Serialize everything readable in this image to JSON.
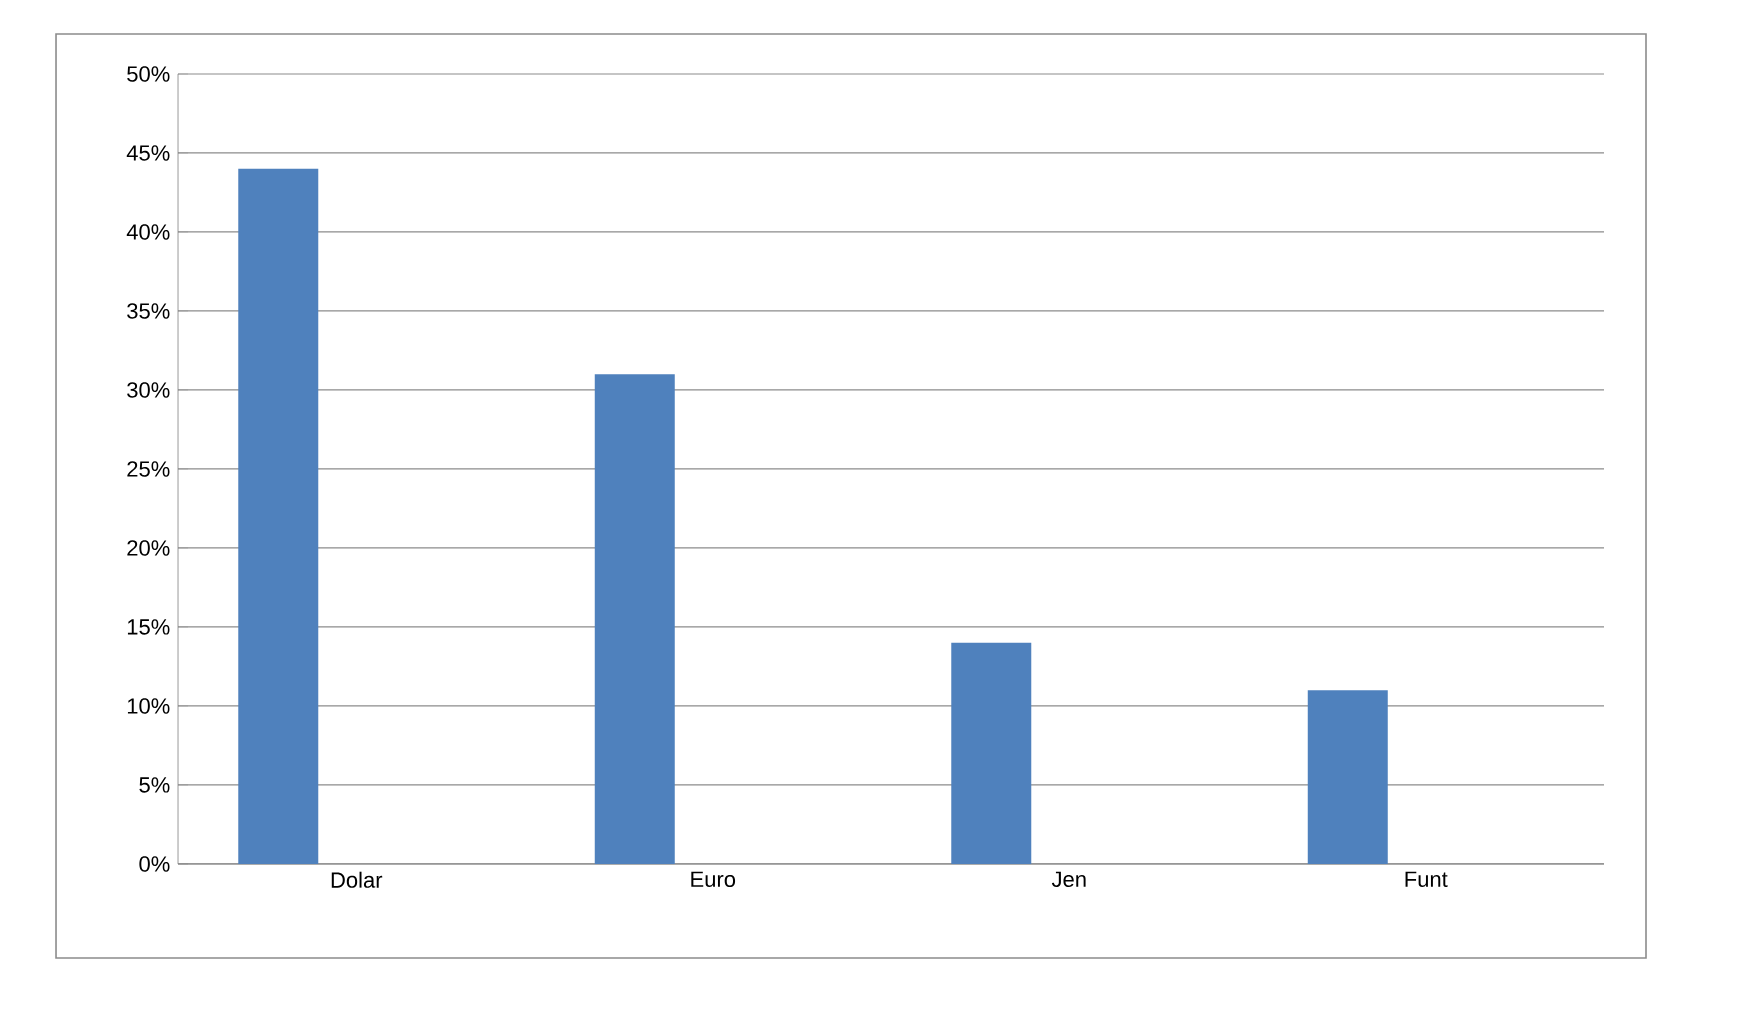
{
  "chart_data": {
    "type": "bar",
    "categories": [
      "Dolar",
      "Euro",
      "Jen",
      "Funt"
    ],
    "values": [
      44,
      31,
      14,
      11
    ],
    "color": "#4f81bd",
    "ylim": [
      0,
      50
    ],
    "yticks": [
      {
        "value": 0,
        "label": "0%"
      },
      {
        "value": 5,
        "label": "5%"
      },
      {
        "value": 10,
        "label": "10%"
      },
      {
        "value": 15,
        "label": "15%"
      },
      {
        "value": 20,
        "label": "20%"
      },
      {
        "value": 25,
        "label": "25%"
      },
      {
        "value": 30,
        "label": "30%"
      },
      {
        "value": 35,
        "label": "35%"
      },
      {
        "value": 40,
        "label": "40%"
      },
      {
        "value": 45,
        "label": "45%"
      },
      {
        "value": 50,
        "label": "50%"
      }
    ],
    "grid": "y"
  }
}
